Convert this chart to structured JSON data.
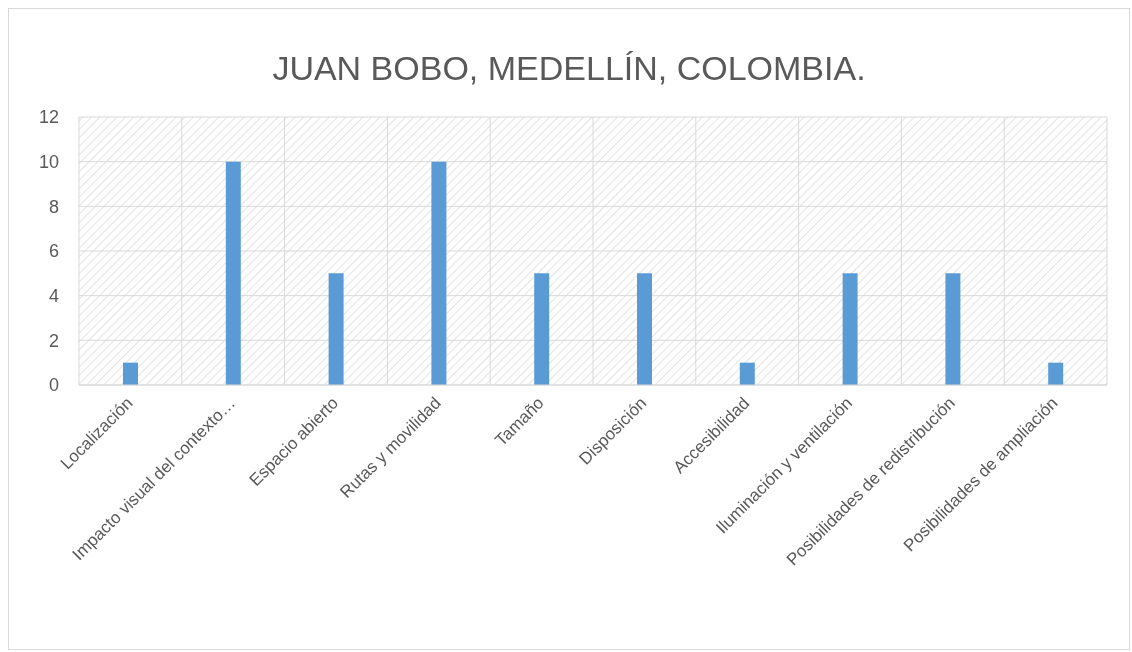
{
  "chart_data": {
    "type": "bar",
    "title": "JUAN BOBO, MEDELLÍN, COLOMBIA.",
    "categories": [
      "Localización",
      "Impacto visual del contexto…",
      "Espacio abierto",
      "Rutas y movilidad",
      "Tamaño",
      "Disposición",
      "Accesibilidad",
      "Iluminación y ventilación",
      "Posibilidades de redistribución",
      "Posibilidades de ampliación"
    ],
    "values": [
      1,
      10,
      5,
      10,
      5,
      5,
      1,
      5,
      5,
      1
    ],
    "color": "#5b9bd5",
    "ylim": [
      0,
      12
    ],
    "yticks": [
      0,
      2,
      4,
      6,
      8,
      10,
      12
    ],
    "grid": true
  }
}
